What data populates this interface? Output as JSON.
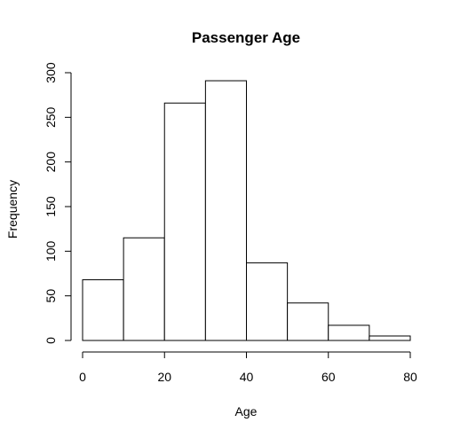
{
  "chart_data": {
    "type": "bar",
    "title": "Passenger Age",
    "xlabel": "Age",
    "ylabel": "Frequency",
    "bins": [
      {
        "from": 0,
        "to": 10,
        "count": 68
      },
      {
        "from": 10,
        "to": 20,
        "count": 115
      },
      {
        "from": 20,
        "to": 30,
        "count": 266
      },
      {
        "from": 30,
        "to": 40,
        "count": 291
      },
      {
        "from": 40,
        "to": 50,
        "count": 87
      },
      {
        "from": 50,
        "to": 60,
        "count": 42
      },
      {
        "from": 60,
        "to": 70,
        "count": 17
      },
      {
        "from": 70,
        "to": 80,
        "count": 5
      }
    ],
    "xlim": [
      0,
      80
    ],
    "ylim": [
      0,
      300
    ],
    "x_ticks": [
      0,
      20,
      40,
      60,
      80
    ],
    "y_ticks": [
      0,
      50,
      100,
      150,
      200,
      250,
      300
    ],
    "grid": false,
    "legend": "none",
    "colors": {
      "bar_fill": "#ffffff",
      "bar_stroke": "#000000"
    }
  }
}
